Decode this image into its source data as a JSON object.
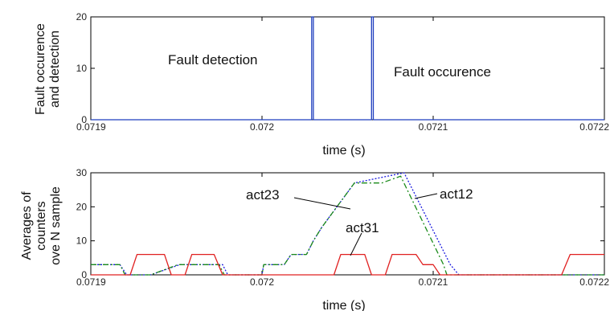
{
  "chart_data": [
    {
      "type": "line",
      "xlabel": "time (s)",
      "ylabel": [
        "Fault occurence",
        "and detection"
      ],
      "xlim": [
        0.0719,
        0.0722
      ],
      "ylim": [
        0,
        20
      ],
      "xticks": [
        "0.0719",
        "0.072",
        "0.0721",
        "0.0722"
      ],
      "yticks": [
        "0",
        "10",
        "20"
      ],
      "annotations": [
        "Fault detection",
        "Fault occurence"
      ],
      "series": [
        {
          "color": "#1f3fbf",
          "x": [
            0.0719,
            0.072028,
            0.072029,
            0.072029,
            0.07203,
            0.07203,
            0.072063,
            0.072064,
            0.072064,
            0.072065,
            0.072065,
            0.0722
          ],
          "y": [
            0,
            0,
            0,
            20,
            20,
            0,
            0,
            0,
            20,
            20,
            0,
            0
          ]
        }
      ]
    },
    {
      "type": "line",
      "xlabel": "time (s)",
      "ylabel": [
        "Averages of",
        "counters",
        "ove N sample"
      ],
      "xlim": [
        0.0719,
        0.0722
      ],
      "ylim": [
        0,
        30
      ],
      "xticks": [
        "0.0719",
        "0.072",
        "0.0721",
        "0.0722"
      ],
      "yticks": [
        "0",
        "10",
        "20",
        "30"
      ],
      "annotations": [
        "act23",
        "act12",
        "act31"
      ],
      "series": [
        {
          "name": "act12",
          "color": "#1a1adf",
          "dash": "2,2",
          "x": [
            0.0719,
            0.071917,
            0.071921,
            0.071935,
            0.071952,
            0.071956,
            0.071969,
            0.071977,
            0.07198,
            0.072,
            0.072001,
            0.072005,
            0.072013,
            0.072017,
            0.072026,
            0.07203,
            0.072035,
            0.072054,
            0.072083,
            0.07211,
            0.072115,
            0.0722
          ],
          "y": [
            3,
            3,
            0,
            0,
            3,
            3,
            3,
            3,
            0,
            0,
            3,
            3,
            3,
            6,
            6,
            10,
            14,
            27,
            30,
            3,
            0,
            0
          ]
        },
        {
          "name": "act23",
          "color": "#1a8a1a",
          "dash": "7,3,2,3",
          "x": [
            0.0719,
            0.071917,
            0.07192,
            0.071935,
            0.071951,
            0.071955,
            0.071969,
            0.071975,
            0.071978,
            0.072,
            0.072001,
            0.072005,
            0.072013,
            0.072017,
            0.072026,
            0.07203,
            0.072035,
            0.072054,
            0.07207,
            0.072081,
            0.072106,
            0.072108,
            0.0722
          ],
          "y": [
            3,
            3,
            0,
            0,
            3,
            3,
            3,
            3,
            0,
            0,
            3,
            3,
            3,
            6,
            6,
            10,
            14,
            27,
            27,
            29,
            3,
            0,
            0
          ]
        },
        {
          "name": "act31",
          "color": "#e02020",
          "x": [
            0.0719,
            0.071923,
            0.071927,
            0.071943,
            0.071947,
            0.071955,
            0.071959,
            0.071972,
            0.071977,
            0.072042,
            0.072046,
            0.07206,
            0.072064,
            0.072072,
            0.072076,
            0.07209,
            0.072094,
            0.0721,
            0.072104,
            0.072175,
            0.07218,
            0.0722
          ],
          "y": [
            0,
            0,
            6,
            6,
            0,
            0,
            6,
            6,
            0,
            0,
            6,
            6,
            0,
            0,
            6,
            6,
            3,
            3,
            0,
            0,
            6,
            6
          ]
        }
      ]
    }
  ]
}
